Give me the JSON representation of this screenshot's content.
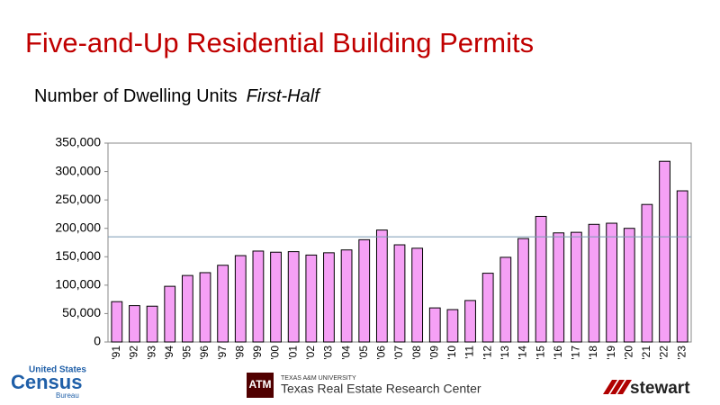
{
  "chart_data": {
    "type": "bar",
    "title": "Five-and-Up Residential Building Permits",
    "subtitle": "Number of Dwelling Units",
    "subtitle_note": "First-Half",
    "categories": [
      "'91",
      "'92",
      "'93",
      "'94",
      "'95",
      "'96",
      "'97",
      "'98",
      "'99",
      "'00",
      "'01",
      "'02",
      "'03",
      "'04",
      "'05",
      "'06",
      "'07",
      "'08",
      "'09",
      "'10",
      "'11",
      "'12",
      "'13",
      "'14",
      "'15",
      "'16",
      "'17",
      "'18",
      "'19",
      "'20",
      "'21",
      "'22",
      "'23"
    ],
    "values": [
      71000,
      64000,
      63000,
      98000,
      117000,
      122000,
      135000,
      152000,
      160000,
      158000,
      159000,
      153000,
      157000,
      162000,
      180000,
      197000,
      171000,
      165000,
      60000,
      57000,
      73000,
      121000,
      149000,
      182000,
      221000,
      192000,
      193000,
      207000,
      209000,
      200000,
      242000,
      318000,
      266000
    ],
    "color": "#f5a0f5",
    "reference_line": 185000,
    "ylim": [
      0,
      350000
    ],
    "yticks": [
      0,
      {
        "value": 50000,
        "label": "50,000"
      },
      {
        "value": 100000,
        "label": "100,000"
      },
      {
        "value": 150000,
        "label": "150,000"
      },
      {
        "value": 200000,
        "label": "200,000"
      },
      {
        "value": 250000,
        "label": "250,000"
      },
      {
        "value": 300000,
        "label": "300,000"
      },
      {
        "value": 350000,
        "label": "350,000"
      }
    ],
    "grid": false
  },
  "logos": {
    "census_top": "United States",
    "census": "Census",
    "census_bottom": "Bureau",
    "tamu_top": "TEXAS A&M UNIVERSITY",
    "tamu": "Texas Real Estate Research Center",
    "stewart": "stewart"
  }
}
